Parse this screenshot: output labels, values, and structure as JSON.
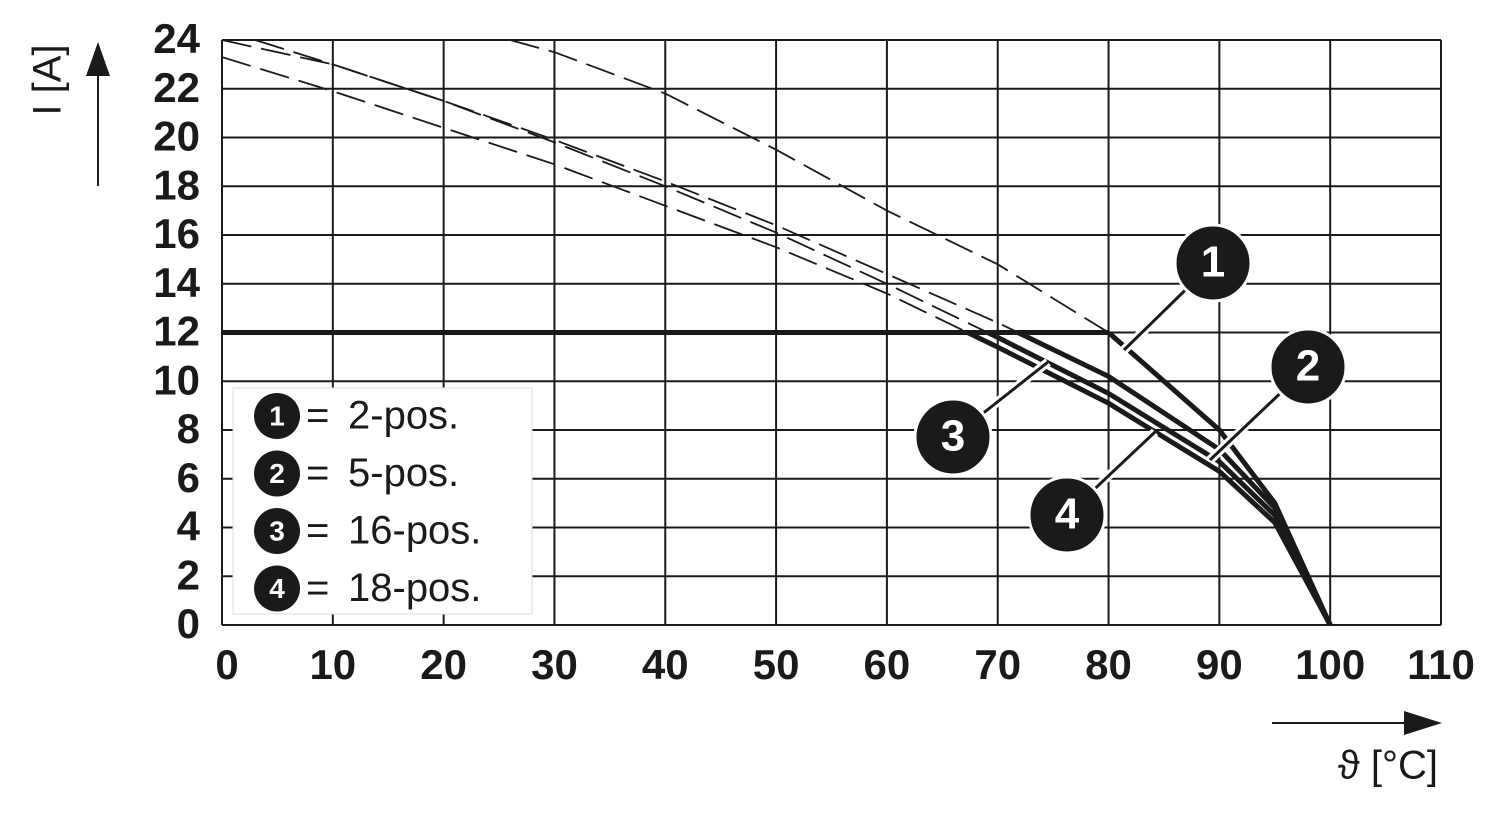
{
  "chart_data": {
    "type": "line",
    "x_label": "ϑ [°C]",
    "y_label": "I [A]",
    "xlim": [
      0,
      110
    ],
    "ylim": [
      0,
      24
    ],
    "xticks": [
      0,
      10,
      20,
      30,
      40,
      50,
      60,
      70,
      80,
      90,
      100,
      110
    ],
    "yticks": [
      0,
      2,
      4,
      6,
      8,
      10,
      12,
      14,
      16,
      18,
      20,
      22,
      24
    ],
    "grid": true,
    "limit": 12,
    "legend_separator": "=",
    "series": [
      {
        "label": "1",
        "name": "2-pos.",
        "color": "#1a1a1a",
        "x": [
          26,
          30,
          40,
          50,
          60,
          70,
          80,
          90,
          95,
          100
        ],
        "values": [
          24,
          23.5,
          21.8,
          19.5,
          17,
          14.8,
          12,
          8,
          5,
          0
        ]
      },
      {
        "label": "2",
        "name": "5-pos.",
        "color": "#1a1a1a",
        "x": [
          3,
          10,
          20,
          30,
          40,
          50,
          60,
          70,
          80,
          90,
          95,
          100
        ],
        "values": [
          24,
          23,
          21.5,
          19.9,
          18.2,
          16.4,
          14.4,
          12.4,
          10.2,
          7.2,
          4.8,
          0
        ]
      },
      {
        "label": "3",
        "name": "16-pos.",
        "color": "#1a1a1a",
        "x": [
          0,
          10,
          20,
          30,
          40,
          50,
          60,
          70,
          80,
          90,
          95,
          100
        ],
        "values": [
          24,
          23,
          21.5,
          19.8,
          18,
          16.1,
          14,
          11.8,
          9.5,
          6.7,
          4.5,
          0
        ]
      },
      {
        "label": "4",
        "name": "18-pos.",
        "color": "#1a1a1a",
        "x": [
          0,
          10,
          20,
          30,
          40,
          50,
          60,
          70,
          80,
          90,
          95,
          100
        ],
        "values": [
          23.3,
          21.9,
          20.4,
          18.9,
          17.2,
          15.5,
          13.6,
          11.4,
          9.1,
          6.3,
          4.2,
          0
        ]
      }
    ]
  }
}
